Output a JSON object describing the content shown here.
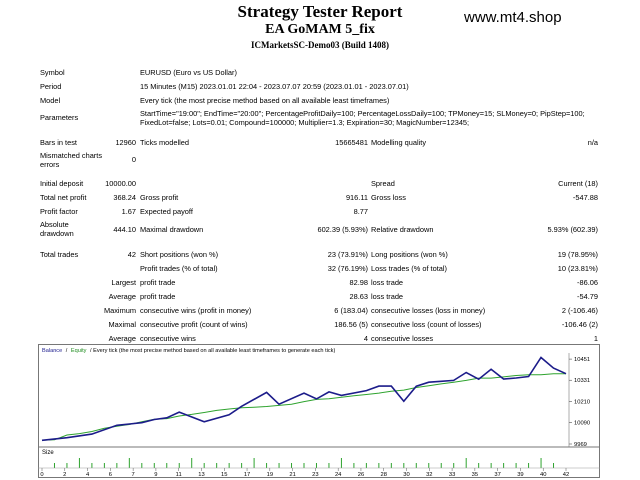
{
  "header": {
    "title": "Strategy Tester Report",
    "ea": "EA GoMAM 5_fix",
    "server": "ICMarketsSC-Demo03 (Build 1408)",
    "watermark": "www.mt4.shop"
  },
  "info": {
    "symbol_label": "Symbol",
    "symbol": "EURUSD (Euro vs US Dollar)",
    "period_label": "Period",
    "period": "15 Minutes (M15) 2023.01.01 22:04 - 2023.07.07 20:59 (2023.01.01 - 2023.07.01)",
    "model_label": "Model",
    "model": "Every tick (the most precise method based on all available least timeframes)",
    "params_label": "Parameters",
    "params": "StartTime=\"19:00\"; EndTime=\"20:00\"; PercentageProfitDaily=100; PercentageLossDaily=100; TPMoney=15; SLMoney=0; PipStep=100; FixedLot=false; Lots=0.01; Compound=100000; Multiplier=1.3; Expiration=30; MagicNumber=12345;"
  },
  "stats": {
    "bars_label": "Bars in test",
    "bars": "12960",
    "ticks_label": "Ticks modelled",
    "ticks": "15665481",
    "quality_label": "Modelling quality",
    "quality": "n/a",
    "mismatched_label": "Mismatched charts errors",
    "mismatched": "0",
    "deposit_label": "Initial deposit",
    "deposit": "10000.00",
    "spread_label": "Spread",
    "spread": "Current (18)",
    "netprofit_label": "Total net profit",
    "netprofit": "368.24",
    "grossprofit_label": "Gross profit",
    "grossprofit": "916.11",
    "grossloss_label": "Gross loss",
    "grossloss": "-547.88",
    "pf_label": "Profit factor",
    "pf": "1.67",
    "payoff_label": "Expected payoff",
    "payoff": "8.77",
    "absdd_label": "Absolute drawdown",
    "absdd": "444.10",
    "maxdd_label": "Maximal drawdown",
    "maxdd": "602.39 (5.93%)",
    "reldd_label": "Relative drawdown",
    "reldd": "5.93% (602.39)",
    "trades_label": "Total trades",
    "trades": "42",
    "short_label": "Short positions (won %)",
    "short": "23 (73.91%)",
    "long_label": "Long positions (won %)",
    "long": "19 (78.95%)",
    "ptrades_label": "Profit trades (% of total)",
    "ptrades": "32 (76.19%)",
    "ltrades_label": "Loss trades (% of total)",
    "ltrades": "10 (23.81%)",
    "largest_label": "Largest",
    "avg_label": "Average",
    "max_label": "Maximum",
    "maximal_label": "Maximal",
    "profit_trade_label": "profit trade",
    "loss_trade_label": "loss trade",
    "largest_profit": "82.98",
    "largest_loss": "-86.06",
    "avg_profit": "28.63",
    "avg_loss": "-54.79",
    "cw_label": "consecutive wins (profit in money)",
    "cw": "6 (183.04)",
    "cl_label": "consecutive losses (loss in money)",
    "cl": "2 (-106.46)",
    "cp_label": "consecutive profit (count of wins)",
    "cp": "186.56 (5)",
    "clc_label": "consecutive loss (count of losses)",
    "clc": "-106.46 (2)",
    "acw_label": "consecutive wins",
    "acw": "4",
    "acl_label": "consecutive losses",
    "acl": "1"
  },
  "chart_data": {
    "type": "line",
    "legend_balance": "Balance",
    "legend_sep": "/",
    "legend_equity": "Equity",
    "legend_rest": "/ Every tick (the most precise method based on all available least timeframes to generate each tick)",
    "y_ticks": [
      "10451",
      "10331",
      "10210",
      "10090",
      "9969"
    ],
    "ylim": [
      9969,
      10480
    ],
    "xlim": [
      0,
      42
    ],
    "size_label": "Size",
    "x_ticks": [
      "0",
      "2",
      "4",
      "6",
      "7",
      "9",
      "11",
      "13",
      "15",
      "17",
      "19",
      "21",
      "23",
      "24",
      "26",
      "28",
      "30",
      "32",
      "33",
      "35",
      "37",
      "39",
      "40",
      "42"
    ],
    "balance_x": [
      0,
      1,
      2,
      3,
      4,
      5,
      6,
      7,
      8,
      9,
      10,
      11,
      12,
      13,
      14,
      15,
      16,
      17,
      18,
      19,
      20,
      21,
      22,
      23,
      24,
      25,
      26,
      27,
      28,
      29,
      30,
      31,
      32,
      33,
      34,
      35,
      36,
      37,
      38,
      39,
      40,
      41,
      42
    ],
    "balance_y": [
      9990,
      9993,
      10020,
      10028,
      10040,
      10058,
      10070,
      10080,
      10095,
      10110,
      10113,
      10128,
      10137,
      10148,
      10160,
      10168,
      10175,
      10178,
      10182,
      10188,
      10195,
      10210,
      10222,
      10226,
      10235,
      10243,
      10250,
      10258,
      10268,
      10275,
      10290,
      10300,
      10310,
      10320,
      10330,
      10343,
      10343,
      10350,
      10358,
      10362,
      10362,
      10368,
      10368
    ],
    "equity_x": [
      0,
      2,
      4,
      6,
      8,
      9,
      10,
      11,
      13,
      15,
      16,
      18,
      19,
      21,
      22,
      23,
      24,
      26,
      27,
      28,
      29,
      30,
      31,
      32,
      33,
      34,
      35,
      36,
      37,
      38,
      39,
      40,
      41,
      42
    ],
    "equity_y": [
      9990,
      10005,
      10025,
      10075,
      10090,
      10108,
      10118,
      10150,
      10095,
      10135,
      10183,
      10262,
      10195,
      10258,
      10225,
      10265,
      10245,
      10272,
      10298,
      10298,
      10212,
      10297,
      10320,
      10325,
      10330,
      10375,
      10337,
      10393,
      10338,
      10344,
      10352,
      10460,
      10400,
      10368
    ],
    "size_x": [
      1,
      2,
      3,
      4,
      5,
      6,
      7,
      8,
      9,
      10,
      11,
      12,
      13,
      14,
      15,
      16,
      17,
      18,
      19,
      20,
      21,
      22,
      23,
      24,
      25,
      26,
      27,
      28,
      29,
      30,
      31,
      32,
      33,
      34,
      35,
      36,
      37,
      38,
      39,
      40,
      41
    ],
    "size_y": [
      1,
      1,
      2,
      1,
      1,
      1,
      2,
      1,
      1,
      1,
      1,
      2,
      1,
      1,
      1,
      1,
      2,
      1,
      1,
      1,
      1,
      1,
      1,
      2,
      1,
      1,
      1,
      1,
      1,
      1,
      1,
      1,
      1,
      2,
      1,
      1,
      1,
      1,
      1,
      2,
      1
    ]
  }
}
